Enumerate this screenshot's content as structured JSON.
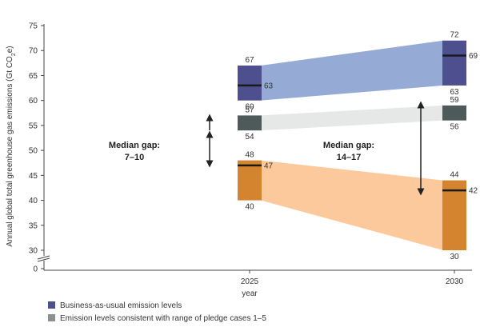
{
  "chart_data": {
    "type": "range-bar",
    "ylabel": "Annual global total greenhouse gas emissions (Gt CO",
    "ylabel_sub": "2",
    "ylabel_suffix": "e)",
    "xlabel": "year",
    "x": [
      "2025",
      "2030"
    ],
    "y_ticks": [
      "75",
      "70",
      "65",
      "60",
      "55",
      "50",
      "45",
      "40",
      "35",
      "30",
      "0"
    ],
    "ylim": [
      30,
      75
    ],
    "axis_break": true,
    "series": [
      {
        "name": "Business-as-usual emission levels",
        "color": "#4e4f8f",
        "band_color": "#95abd6",
        "ranges": [
          {
            "year": "2025",
            "low": 60,
            "high": 67,
            "median": 63,
            "low_label": "60",
            "high_label": "67",
            "median_label": "63"
          },
          {
            "year": "2030",
            "low": 63,
            "high": 72,
            "median": 69,
            "low_label": "63",
            "high_label": "72",
            "median_label": "69"
          }
        ]
      },
      {
        "name": "Emission levels consistent with range of pledge cases 1–5",
        "color": "#4e5a5a",
        "band_color": "#e6e7e7",
        "ranges": [
          {
            "year": "2025",
            "low": 54,
            "high": 57,
            "low_label": "54",
            "high_label": "57"
          },
          {
            "year": "2030",
            "low": 56,
            "high": 59,
            "low_label": "56",
            "high_label": "59"
          }
        ]
      },
      {
        "name": "",
        "color": "#d4832e",
        "band_color": "#fcc99c",
        "ranges": [
          {
            "year": "2025",
            "low": 40,
            "high": 48,
            "median": 47,
            "low_label": "40",
            "high_label": "48",
            "median_label": "47"
          },
          {
            "year": "2030",
            "low": 30,
            "high": 44,
            "median": 42,
            "low_label": "30",
            "high_label": "44",
            "median_label": "42"
          }
        ]
      }
    ],
    "annotations": [
      {
        "title": "Median gap:",
        "value": "7–10",
        "near": "2025"
      },
      {
        "title": "Median gap:",
        "value": "14–17",
        "near": "2030"
      }
    ],
    "legend": [
      {
        "label": "Business-as-usual emission levels",
        "color": "#4e4f8f"
      },
      {
        "label": "Emission levels consistent with range of pledge cases 1–5",
        "color": "#8a928f"
      }
    ]
  }
}
